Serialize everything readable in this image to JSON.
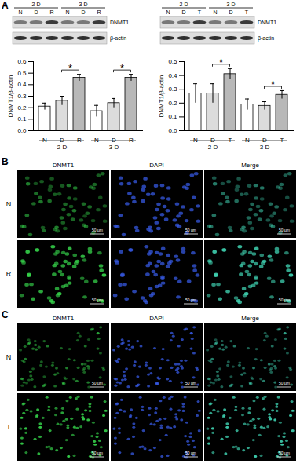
{
  "panel_labels": [
    "A",
    "B",
    "C"
  ],
  "blots": [
    {
      "groups": [
        "2 D",
        "3 D"
      ],
      "lanes": [
        "N",
        "D",
        "R",
        "N",
        "D",
        "R"
      ],
      "rows": [
        "DNMT1",
        "β-actin"
      ]
    },
    {
      "groups": [
        "2 D",
        "3 D"
      ],
      "lanes": [
        "N",
        "D",
        "T",
        "N",
        "D",
        "T"
      ],
      "rows": [
        "DNMT1",
        "β-actin"
      ]
    }
  ],
  "chart_data": [
    {
      "type": "bar",
      "y_label": "DNMT1/β-actin",
      "categories": [
        "N",
        "D",
        "R",
        "N",
        "D",
        "R"
      ],
      "group_labels": [
        "2 D",
        "3 D"
      ],
      "values": [
        0.21,
        0.26,
        0.46,
        0.17,
        0.24,
        0.46
      ],
      "errors": [
        0.03,
        0.04,
        0.03,
        0.05,
        0.04,
        0.03
      ],
      "colors": [
        "#ffffff",
        "#dcdcdc",
        "#b8b8b8",
        "#ffffff",
        "#dcdcdc",
        "#b8b8b8"
      ],
      "ylim": [
        0,
        0.6
      ],
      "yticks": [
        {
          "value": 0,
          "label": "0.0"
        },
        0.1,
        0.2,
        0.3,
        0.4,
        0.5,
        0.6
      ],
      "annotations": [
        {
          "text": "*",
          "from": 1,
          "to": 2
        },
        {
          "text": "*",
          "from": 4,
          "to": 5
        }
      ]
    },
    {
      "type": "bar",
      "y_label": "DNMT1/β-actin",
      "categories": [
        "N",
        "D",
        "T",
        "N",
        "D",
        "T"
      ],
      "group_labels": [
        "2 D",
        "3 D"
      ],
      "values": [
        0.27,
        0.27,
        0.41,
        0.19,
        0.18,
        0.26
      ],
      "errors": [
        0.07,
        0.07,
        0.04,
        0.04,
        0.03,
        0.03
      ],
      "colors": [
        "#ffffff",
        "#dcdcdc",
        "#b8b8b8",
        "#ffffff",
        "#dcdcdc",
        "#b8b8b8"
      ],
      "ylim": [
        0,
        0.5
      ],
      "yticks": [
        {
          "value": 0,
          "label": "0.0"
        },
        0.1,
        0.2,
        0.3,
        0.4,
        0.5
      ],
      "annotations": [
        {
          "text": "*",
          "from": 1,
          "to": 2
        },
        {
          "text": "*",
          "from": 4,
          "to": 5
        }
      ]
    }
  ],
  "images": [
    {
      "columns": [
        "DNMT1",
        "DAPI",
        "Merge"
      ],
      "rows": [
        "N",
        "R"
      ],
      "scale_bar": "50 μm"
    },
    {
      "columns": [
        "DNMT1",
        "DAPI",
        "Merge"
      ],
      "rows": [
        "N",
        "T"
      ],
      "scale_bar": "50 μm"
    }
  ]
}
